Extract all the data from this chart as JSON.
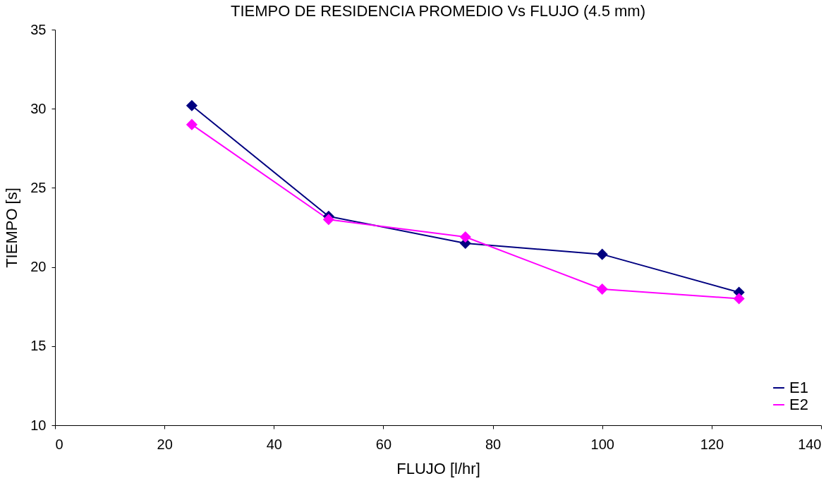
{
  "chart_data": {
    "type": "line",
    "title": "TIEMPO DE RESIDENCIA PROMEDIO Vs FLUJO (4.5 mm)",
    "xlabel": "FLUJO [l/hr]",
    "ylabel": "TIEMPO [s]",
    "x": [
      25,
      50,
      75,
      100,
      125
    ],
    "series": [
      {
        "name": "E1",
        "color": "#000080",
        "values": [
          30.2,
          23.2,
          21.5,
          20.8,
          18.4
        ]
      },
      {
        "name": "E2",
        "color": "#ff00ff",
        "values": [
          29.0,
          23.0,
          21.9,
          18.6,
          18.0
        ]
      }
    ],
    "xlim": [
      0,
      140
    ],
    "xticks": [
      0,
      20,
      40,
      60,
      80,
      100,
      120,
      140
    ],
    "ylim": [
      10,
      35
    ],
    "yticks": [
      10,
      15,
      20,
      25,
      30,
      35
    ],
    "grid": false,
    "legend": "bottom right",
    "marker": "diamond",
    "line_style": "solid"
  }
}
